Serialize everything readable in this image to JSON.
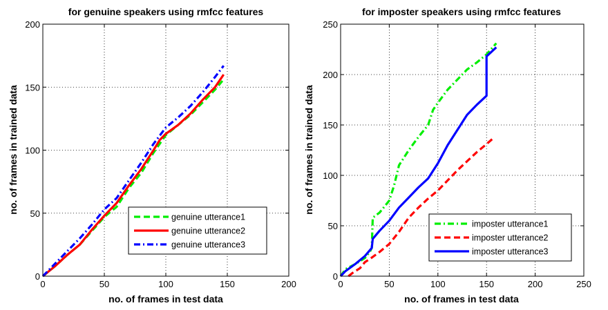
{
  "chart_data": [
    {
      "type": "line",
      "title": "for genuine speakers  using rmfcc features",
      "xlabel": "no. of frames in test data",
      "ylabel": "no. of frames in trained data",
      "xlim": [
        0,
        200
      ],
      "ylim": [
        0,
        200
      ],
      "xticks": [
        0,
        50,
        100,
        150,
        200
      ],
      "yticks": [
        0,
        50,
        100,
        150,
        200
      ],
      "grid": true,
      "legend_position": "lower-right",
      "series": [
        {
          "name": "genuine utterance1",
          "color": "#00ee00",
          "dash": "dashed",
          "points": [
            [
              0,
              0
            ],
            [
              5,
              4
            ],
            [
              10,
              8
            ],
            [
              20,
              17
            ],
            [
              30,
              25
            ],
            [
              40,
              36
            ],
            [
              50,
              47
            ],
            [
              60,
              55
            ],
            [
              70,
              70
            ],
            [
              80,
              82
            ],
            [
              90,
              98
            ],
            [
              100,
              112
            ],
            [
              110,
              120
            ],
            [
              120,
              128
            ],
            [
              130,
              138
            ],
            [
              140,
              148
            ],
            [
              146,
              155
            ]
          ]
        },
        {
          "name": "genuine utterance2",
          "color": "#ff0000",
          "dash": "solid",
          "points": [
            [
              0,
              0
            ],
            [
              5,
              4
            ],
            [
              10,
              8
            ],
            [
              20,
              17
            ],
            [
              30,
              25
            ],
            [
              40,
              37
            ],
            [
              50,
              48
            ],
            [
              60,
              58
            ],
            [
              70,
              72
            ],
            [
              80,
              85
            ],
            [
              90,
              100
            ],
            [
              95,
              108
            ],
            [
              100,
              113
            ],
            [
              110,
              120
            ],
            [
              120,
              129
            ],
            [
              130,
              140
            ],
            [
              140,
              150
            ],
            [
              147,
              160
            ]
          ]
        },
        {
          "name": "genuine utterance3",
          "color": "#0000ff",
          "dash": "dashdot",
          "points": [
            [
              0,
              0
            ],
            [
              5,
              5
            ],
            [
              10,
              10
            ],
            [
              20,
              20
            ],
            [
              30,
              30
            ],
            [
              40,
              41
            ],
            [
              50,
              53
            ],
            [
              60,
              62
            ],
            [
              70,
              76
            ],
            [
              80,
              90
            ],
            [
              90,
              105
            ],
            [
              100,
              118
            ],
            [
              110,
              126
            ],
            [
              120,
              135
            ],
            [
              130,
              146
            ],
            [
              140,
              158
            ],
            [
              147,
              167
            ]
          ]
        }
      ]
    },
    {
      "type": "line",
      "title": "for imposter speakers using rmfcc features",
      "xlabel": "no. of frames in test data",
      "ylabel": "no. of frames in trained data",
      "xlim": [
        0,
        250
      ],
      "ylim": [
        0,
        250
      ],
      "xticks": [
        0,
        50,
        100,
        150,
        200,
        250
      ],
      "yticks": [
        0,
        50,
        100,
        150,
        200,
        250
      ],
      "grid": true,
      "legend_position": "lower-right",
      "series": [
        {
          "name": "imposter utterance1",
          "color": "#00ee00",
          "dash": "dashdot",
          "points": [
            [
              0,
              0
            ],
            [
              5,
              7
            ],
            [
              15,
              12
            ],
            [
              25,
              18
            ],
            [
              30,
              24
            ],
            [
              32,
              28
            ],
            [
              33,
              58
            ],
            [
              40,
              63
            ],
            [
              50,
              75
            ],
            [
              55,
              90
            ],
            [
              60,
              110
            ],
            [
              70,
              125
            ],
            [
              80,
              138
            ],
            [
              90,
              150
            ],
            [
              95,
              165
            ],
            [
              100,
              172
            ],
            [
              110,
              185
            ],
            [
              120,
              195
            ],
            [
              130,
              205
            ],
            [
              140,
              212
            ],
            [
              150,
              220
            ],
            [
              160,
              231
            ]
          ]
        },
        {
          "name": "imposter utterance2",
          "color": "#ff0000",
          "dash": "dashed",
          "points": [
            [
              8,
              0
            ],
            [
              12,
              3
            ],
            [
              20,
              8
            ],
            [
              25,
              14
            ],
            [
              30,
              17
            ],
            [
              40,
              24
            ],
            [
              50,
              32
            ],
            [
              60,
              44
            ],
            [
              70,
              58
            ],
            [
              80,
              68
            ],
            [
              90,
              77
            ],
            [
              100,
              85
            ],
            [
              110,
              95
            ],
            [
              120,
              105
            ],
            [
              130,
              114
            ],
            [
              140,
              123
            ],
            [
              150,
              131
            ],
            [
              157,
              137
            ]
          ]
        },
        {
          "name": "imposter utterance3",
          "color": "#0000ff",
          "dash": "solid",
          "points": [
            [
              0,
              0
            ],
            [
              5,
              5
            ],
            [
              15,
              12
            ],
            [
              25,
              20
            ],
            [
              32,
              28
            ],
            [
              33,
              37
            ],
            [
              40,
              45
            ],
            [
              50,
              55
            ],
            [
              60,
              68
            ],
            [
              70,
              78
            ],
            [
              80,
              88
            ],
            [
              90,
              97
            ],
            [
              100,
              112
            ],
            [
              110,
              130
            ],
            [
              120,
              145
            ],
            [
              130,
              160
            ],
            [
              140,
              170
            ],
            [
              150,
              179
            ],
            [
              150,
              218
            ],
            [
              160,
              227
            ]
          ]
        }
      ]
    }
  ]
}
